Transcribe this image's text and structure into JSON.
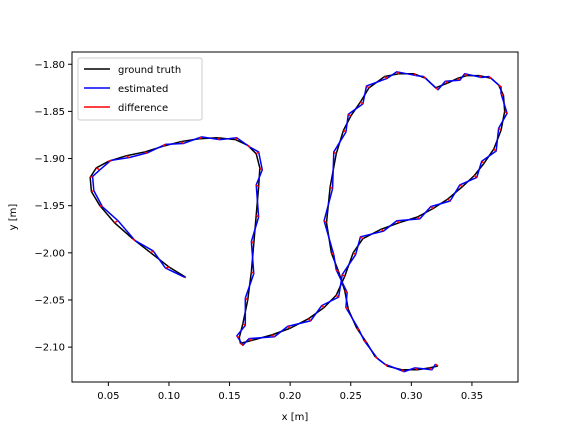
{
  "chart_data": {
    "type": "line",
    "xlabel": "x [m]",
    "ylabel": "y [m]",
    "xlim": [
      0.02,
      0.388
    ],
    "ylim": [
      -2.137,
      -1.787
    ],
    "xticks": [
      0.05,
      0.1,
      0.15,
      0.2,
      0.25,
      0.3,
      0.35
    ],
    "xtick_labels": [
      "0.05",
      "0.10",
      "0.15",
      "0.20",
      "0.25",
      "0.30",
      "0.35"
    ],
    "yticks": [
      -1.8,
      -1.85,
      -1.9,
      -1.95,
      -2.0,
      -2.05,
      -2.1
    ],
    "ytick_labels": [
      "−1.80",
      "−1.85",
      "−1.90",
      "−1.95",
      "−2.00",
      "−2.05",
      "−2.10"
    ],
    "grid": false,
    "legend_position": "top-left",
    "series": [
      {
        "name": "ground truth",
        "color": "#000000",
        "points": [
          [
            0.114,
            -2.026
          ],
          [
            0.1,
            -2.015
          ],
          [
            0.085,
            -2.0
          ],
          [
            0.07,
            -1.985
          ],
          [
            0.055,
            -1.968
          ],
          [
            0.043,
            -1.95
          ],
          [
            0.036,
            -1.935
          ],
          [
            0.035,
            -1.92
          ],
          [
            0.04,
            -1.91
          ],
          [
            0.05,
            -1.903
          ],
          [
            0.065,
            -1.897
          ],
          [
            0.08,
            -1.893
          ],
          [
            0.095,
            -1.887
          ],
          [
            0.11,
            -1.882
          ],
          [
            0.125,
            -1.879
          ],
          [
            0.14,
            -1.878
          ],
          [
            0.155,
            -1.88
          ],
          [
            0.165,
            -1.886
          ],
          [
            0.172,
            -1.895
          ],
          [
            0.175,
            -1.91
          ],
          [
            0.174,
            -1.93
          ],
          [
            0.172,
            -1.96
          ],
          [
            0.17,
            -1.99
          ],
          [
            0.168,
            -2.02
          ],
          [
            0.165,
            -2.05
          ],
          [
            0.161,
            -2.075
          ],
          [
            0.158,
            -2.09
          ],
          [
            0.159,
            -2.096
          ],
          [
            0.168,
            -2.093
          ],
          [
            0.185,
            -2.087
          ],
          [
            0.2,
            -2.08
          ],
          [
            0.215,
            -2.07
          ],
          [
            0.228,
            -2.058
          ],
          [
            0.238,
            -2.045
          ],
          [
            0.245,
            -2.025
          ],
          [
            0.252,
            -2.0
          ],
          [
            0.26,
            -1.985
          ],
          [
            0.275,
            -1.975
          ],
          [
            0.29,
            -1.968
          ],
          [
            0.305,
            -1.962
          ],
          [
            0.318,
            -1.953
          ],
          [
            0.33,
            -1.943
          ],
          [
            0.342,
            -1.93
          ],
          [
            0.352,
            -1.918
          ],
          [
            0.36,
            -1.905
          ],
          [
            0.368,
            -1.89
          ],
          [
            0.374,
            -1.87
          ],
          [
            0.377,
            -1.85
          ],
          [
            0.376,
            -1.833
          ],
          [
            0.372,
            -1.822
          ],
          [
            0.366,
            -1.815
          ],
          [
            0.356,
            -1.812
          ],
          [
            0.346,
            -1.812
          ],
          [
            0.338,
            -1.815
          ],
          [
            0.33,
            -1.82
          ],
          [
            0.32,
            -1.825
          ],
          [
            0.312,
            -1.815
          ],
          [
            0.302,
            -1.81
          ],
          [
            0.29,
            -1.81
          ],
          [
            0.278,
            -1.813
          ],
          [
            0.265,
            -1.825
          ],
          [
            0.258,
            -1.84
          ],
          [
            0.25,
            -1.855
          ],
          [
            0.244,
            -1.87
          ],
          [
            0.238,
            -1.895
          ],
          [
            0.233,
            -1.93
          ],
          [
            0.23,
            -1.968
          ],
          [
            0.234,
            -2.0
          ],
          [
            0.24,
            -2.02
          ],
          [
            0.245,
            -2.04
          ],
          [
            0.248,
            -2.06
          ],
          [
            0.255,
            -2.08
          ],
          [
            0.263,
            -2.095
          ],
          [
            0.27,
            -2.11
          ],
          [
            0.28,
            -2.12
          ],
          [
            0.292,
            -2.124
          ],
          [
            0.305,
            -2.124
          ],
          [
            0.315,
            -2.122
          ],
          [
            0.322,
            -2.12
          ]
        ]
      },
      {
        "name": "estimated",
        "color": "#0000ff",
        "points": [
          [
            0.113,
            -2.026
          ],
          [
            0.097,
            -2.016
          ],
          [
            0.087,
            -1.998
          ],
          [
            0.072,
            -1.987
          ],
          [
            0.058,
            -1.966
          ],
          [
            0.045,
            -1.951
          ],
          [
            0.038,
            -1.934
          ],
          [
            0.037,
            -1.919
          ],
          [
            0.043,
            -1.912
          ],
          [
            0.052,
            -1.902
          ],
          [
            0.067,
            -1.899
          ],
          [
            0.082,
            -1.894
          ],
          [
            0.097,
            -1.885
          ],
          [
            0.112,
            -1.884
          ],
          [
            0.127,
            -1.877
          ],
          [
            0.142,
            -1.88
          ],
          [
            0.156,
            -1.878
          ],
          [
            0.167,
            -1.888
          ],
          [
            0.174,
            -1.893
          ],
          [
            0.177,
            -1.912
          ],
          [
            0.172,
            -1.928
          ],
          [
            0.174,
            -1.962
          ],
          [
            0.168,
            -1.988
          ],
          [
            0.17,
            -2.022
          ],
          [
            0.163,
            -2.048
          ],
          [
            0.163,
            -2.077
          ],
          [
            0.156,
            -2.088
          ],
          [
            0.161,
            -2.098
          ],
          [
            0.166,
            -2.091
          ],
          [
            0.187,
            -2.089
          ],
          [
            0.198,
            -2.078
          ],
          [
            0.217,
            -2.072
          ],
          [
            0.226,
            -2.056
          ],
          [
            0.24,
            -2.047
          ],
          [
            0.243,
            -2.023
          ],
          [
            0.254,
            -2.002
          ],
          [
            0.258,
            -1.983
          ],
          [
            0.277,
            -1.977
          ],
          [
            0.288,
            -1.966
          ],
          [
            0.307,
            -1.964
          ],
          [
            0.316,
            -1.951
          ],
          [
            0.332,
            -1.945
          ],
          [
            0.34,
            -1.928
          ],
          [
            0.354,
            -1.92
          ],
          [
            0.358,
            -1.903
          ],
          [
            0.37,
            -1.892
          ],
          [
            0.372,
            -1.868
          ],
          [
            0.379,
            -1.852
          ],
          [
            0.374,
            -1.831
          ],
          [
            0.374,
            -1.824
          ],
          [
            0.364,
            -1.813
          ],
          [
            0.358,
            -1.814
          ],
          [
            0.344,
            -1.81
          ],
          [
            0.34,
            -1.817
          ],
          [
            0.328,
            -1.818
          ],
          [
            0.322,
            -1.827
          ],
          [
            0.31,
            -1.813
          ],
          [
            0.304,
            -1.812
          ],
          [
            0.288,
            -1.808
          ],
          [
            0.28,
            -1.815
          ],
          [
            0.263,
            -1.823
          ],
          [
            0.26,
            -1.842
          ],
          [
            0.248,
            -1.853
          ],
          [
            0.246,
            -1.872
          ],
          [
            0.236,
            -1.893
          ],
          [
            0.235,
            -1.932
          ],
          [
            0.228,
            -1.966
          ],
          [
            0.236,
            -2.002
          ],
          [
            0.238,
            -2.018
          ],
          [
            0.247,
            -2.042
          ],
          [
            0.246,
            -2.058
          ],
          [
            0.257,
            -2.082
          ],
          [
            0.261,
            -2.093
          ],
          [
            0.272,
            -2.112
          ],
          [
            0.278,
            -2.118
          ],
          [
            0.294,
            -2.126
          ],
          [
            0.303,
            -2.122
          ],
          [
            0.317,
            -2.124
          ],
          [
            0.32,
            -2.118
          ]
        ]
      },
      {
        "name": "difference",
        "color": "#ff0000",
        "points": []
      }
    ]
  }
}
